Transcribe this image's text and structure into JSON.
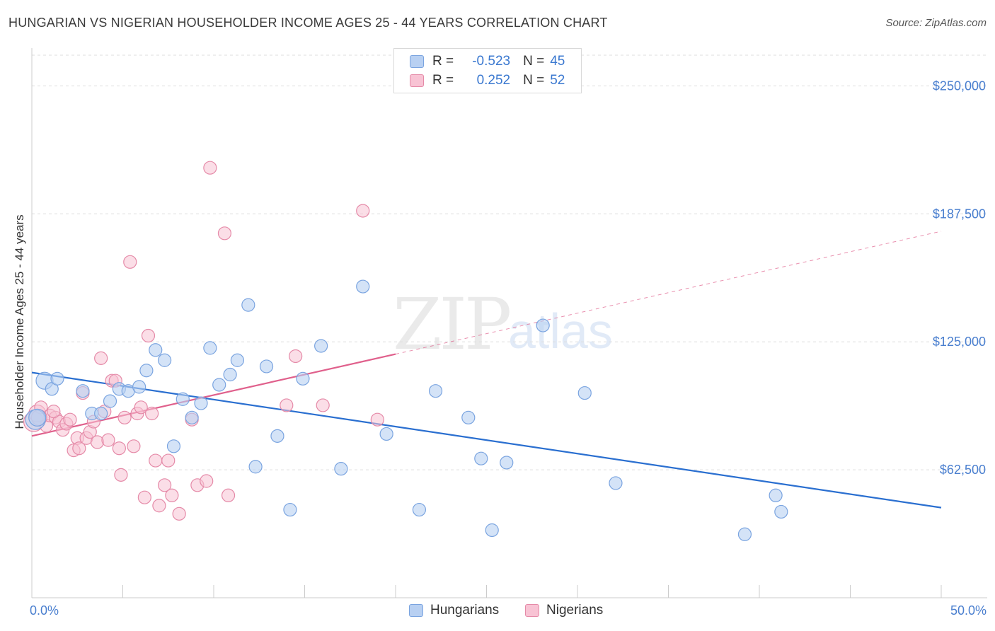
{
  "header": {
    "title": "HUNGARIAN VS NIGERIAN HOUSEHOLDER INCOME AGES 25 - 44 YEARS CORRELATION CHART",
    "source": "Source: ZipAtlas.com"
  },
  "watermark": {
    "zip": "ZIP",
    "atlas": "atlas"
  },
  "legend": {
    "rows": [
      {
        "r_label": "R =",
        "r_value": "-0.523",
        "n_label": "N =",
        "n_value": "45"
      },
      {
        "r_label": "R =",
        "r_value": "0.252",
        "n_label": "N =",
        "n_value": "52"
      }
    ],
    "bottom": [
      "Hungarians",
      "Nigerians"
    ]
  },
  "colors": {
    "hungarian_fill": "#b8d0f2",
    "hungarian_stroke": "#7aa4e0",
    "hungarian_line": "#2a6fd0",
    "nigerian_fill": "#f8c3d4",
    "nigerian_stroke": "#e58aa8",
    "nigerian_line": "#e0608c",
    "grid": "#dddddd",
    "tick_text": "#4a7fcf"
  },
  "chart_data": {
    "type": "scatter",
    "title": "HUNGARIAN VS NIGERIAN HOUSEHOLDER INCOME AGES 25 - 44 YEARS CORRELATION CHART",
    "xlabel": "",
    "ylabel": "Householder Income Ages 25 - 44 years",
    "xlim": [
      0,
      50
    ],
    "ylim": [
      0,
      265000
    ],
    "x_tick_labels": [
      "0.0%",
      "50.0%"
    ],
    "y_ticks": [
      {
        "value": 62500,
        "label": "$62,500"
      },
      {
        "value": 125000,
        "label": "$125,000"
      },
      {
        "value": 187500,
        "label": "$187,500"
      },
      {
        "value": 250000,
        "label": "$250,000"
      }
    ],
    "grid": true,
    "legend_position": "top-center",
    "series": [
      {
        "name": "Hungarians",
        "r": -0.523,
        "n": 45,
        "trend": {
          "x0": 0,
          "y0": 110000,
          "x1": 50,
          "y1": 44000,
          "dashed_from": null
        },
        "points": [
          [
            0.2,
            87000,
            14
          ],
          [
            0.3,
            88000,
            12
          ],
          [
            0.7,
            106000,
            12
          ],
          [
            1.1,
            102000,
            9
          ],
          [
            1.4,
            107000,
            9
          ],
          [
            2.8,
            101000,
            9
          ],
          [
            3.3,
            90000,
            9
          ],
          [
            3.8,
            90000,
            9
          ],
          [
            4.3,
            96000,
            9
          ],
          [
            4.8,
            102000,
            9
          ],
          [
            5.3,
            101000,
            9
          ],
          [
            5.9,
            103000,
            9
          ],
          [
            6.3,
            111000,
            9
          ],
          [
            6.8,
            121000,
            9
          ],
          [
            7.3,
            116000,
            9
          ],
          [
            7.8,
            74000,
            9
          ],
          [
            8.3,
            97000,
            9
          ],
          [
            8.8,
            88000,
            9
          ],
          [
            9.3,
            95000,
            9
          ],
          [
            9.8,
            122000,
            9
          ],
          [
            10.3,
            104000,
            9
          ],
          [
            10.9,
            109000,
            9
          ],
          [
            11.3,
            116000,
            9
          ],
          [
            11.9,
            143000,
            9
          ],
          [
            12.3,
            64000,
            9
          ],
          [
            12.9,
            113000,
            9
          ],
          [
            13.5,
            79000,
            9
          ],
          [
            14.2,
            43000,
            9
          ],
          [
            14.9,
            107000,
            9
          ],
          [
            15.9,
            123000,
            9
          ],
          [
            17.0,
            63000,
            9
          ],
          [
            18.2,
            152000,
            9
          ],
          [
            19.5,
            80000,
            9
          ],
          [
            21.3,
            43000,
            9
          ],
          [
            22.2,
            101000,
            9
          ],
          [
            24.0,
            88000,
            9
          ],
          [
            24.7,
            68000,
            9
          ],
          [
            25.3,
            33000,
            9
          ],
          [
            26.1,
            66000,
            9
          ],
          [
            28.1,
            133000,
            9
          ],
          [
            30.4,
            100000,
            9
          ],
          [
            32.1,
            56000,
            9
          ],
          [
            39.2,
            31000,
            9
          ],
          [
            40.9,
            50000,
            9
          ],
          [
            41.2,
            42000,
            9
          ]
        ]
      },
      {
        "name": "Nigerians",
        "r": 0.252,
        "n": 52,
        "trend": {
          "x0": 0,
          "y0": 79000,
          "x1": 50,
          "y1": 179000,
          "dashed_from": 20
        },
        "points": [
          [
            0.1,
            86000,
            14
          ],
          [
            0.3,
            90000,
            12
          ],
          [
            0.5,
            93000,
            9
          ],
          [
            0.8,
            84000,
            9
          ],
          [
            1.0,
            89000,
            9
          ],
          [
            1.3,
            88000,
            9
          ],
          [
            1.5,
            86000,
            9
          ],
          [
            1.7,
            82000,
            9
          ],
          [
            1.9,
            85000,
            9
          ],
          [
            2.1,
            87000,
            9
          ],
          [
            2.3,
            72000,
            9
          ],
          [
            2.5,
            78000,
            9
          ],
          [
            2.6,
            73000,
            9
          ],
          [
            2.8,
            100000,
            9
          ],
          [
            3.0,
            78000,
            9
          ],
          [
            3.2,
            81000,
            9
          ],
          [
            3.4,
            86000,
            9
          ],
          [
            3.6,
            76000,
            9
          ],
          [
            3.8,
            117000,
            9
          ],
          [
            4.0,
            91000,
            9
          ],
          [
            4.2,
            77000,
            9
          ],
          [
            4.4,
            106000,
            9
          ],
          [
            4.6,
            106000,
            9
          ],
          [
            4.8,
            73000,
            9
          ],
          [
            4.9,
            60000,
            9
          ],
          [
            5.1,
            88000,
            9
          ],
          [
            5.4,
            164000,
            9
          ],
          [
            5.6,
            74000,
            9
          ],
          [
            5.8,
            90000,
            9
          ],
          [
            6.0,
            93000,
            9
          ],
          [
            6.2,
            49000,
            9
          ],
          [
            6.4,
            128000,
            9
          ],
          [
            6.6,
            90000,
            9
          ],
          [
            6.8,
            67000,
            9
          ],
          [
            7.0,
            45000,
            9
          ],
          [
            7.3,
            55000,
            9
          ],
          [
            7.5,
            67000,
            9
          ],
          [
            7.7,
            50000,
            9
          ],
          [
            8.1,
            41000,
            9
          ],
          [
            8.8,
            87000,
            9
          ],
          [
            9.1,
            55000,
            9
          ],
          [
            9.6,
            57000,
            9
          ],
          [
            9.8,
            210000,
            9
          ],
          [
            10.6,
            178000,
            9
          ],
          [
            10.8,
            50000,
            9
          ],
          [
            14.0,
            94000,
            9
          ],
          [
            14.5,
            118000,
            9
          ],
          [
            16.0,
            94000,
            9
          ],
          [
            18.2,
            189000,
            9
          ],
          [
            19.0,
            87000,
            9
          ],
          [
            0.4,
            88000,
            11
          ],
          [
            1.2,
            91000,
            9
          ]
        ]
      }
    ]
  }
}
